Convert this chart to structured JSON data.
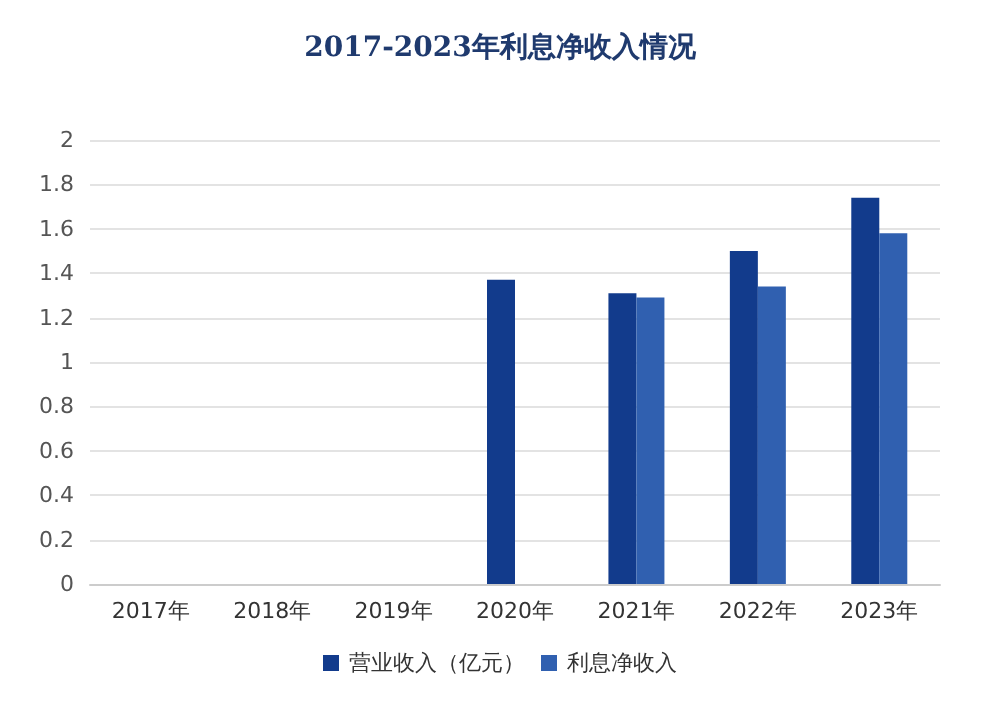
{
  "chart_data": {
    "type": "bar",
    "title": "2017-2023年利息净收入情况",
    "categories": [
      "2017年",
      "2018年",
      "2019年",
      "2020年",
      "2021年",
      "2022年",
      "2023年"
    ],
    "series": [
      {
        "name": "营业收入（亿元）",
        "color": "#123b8c",
        "values": [
          null,
          null,
          null,
          1.37,
          1.31,
          1.5,
          1.74
        ]
      },
      {
        "name": "利息净收入",
        "color": "#3060b0",
        "values": [
          null,
          null,
          null,
          null,
          1.29,
          1.34,
          1.58
        ]
      }
    ],
    "ylim": [
      0,
      2
    ],
    "yticks": [
      0,
      0.2,
      0.4,
      0.6,
      0.8,
      1,
      1.2,
      1.4,
      1.6,
      1.8,
      2
    ],
    "grid": "y",
    "legend": "bottom"
  }
}
